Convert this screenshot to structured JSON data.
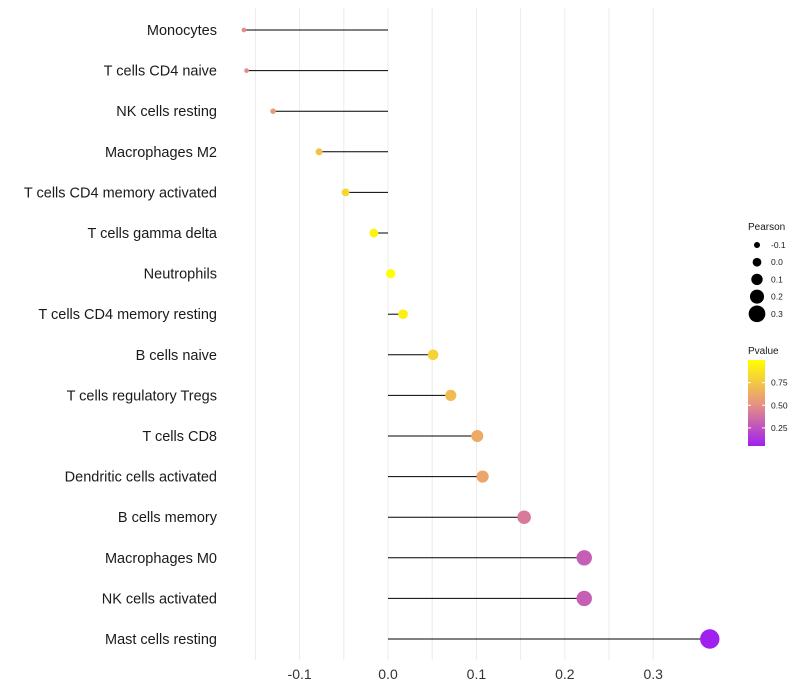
{
  "chart_data": {
    "type": "lollipop",
    "title": "",
    "xlabel": "",
    "ylabel": "",
    "xlim": [
      -0.17,
      0.37
    ],
    "x_ticks": [
      -0.1,
      0.0,
      0.1,
      0.2,
      0.3
    ],
    "x_tick_labels": [
      "-0.1",
      "0.0",
      "0.1",
      "0.2",
      "0.3"
    ],
    "grid": true,
    "categories": [
      "Monocytes",
      "T cells CD4 naive",
      "NK cells resting",
      "Macrophages M2",
      "T cells CD4 memory activated",
      "T cells gamma delta",
      "Neutrophils",
      "T cells CD4 memory resting",
      "B cells naive",
      "T cells regulatory  Tregs ",
      "T cells CD8",
      "Dendritic cells activated",
      "B cells memory",
      "Macrophages M0",
      "NK cells activated",
      "Mast cells resting"
    ],
    "pearson": [
      -0.163,
      -0.16,
      -0.13,
      -0.078,
      -0.048,
      -0.016,
      0.003,
      0.017,
      0.051,
      0.071,
      0.101,
      0.107,
      0.154,
      0.222,
      0.222,
      0.364
    ],
    "pvalue": [
      0.5,
      0.5,
      0.55,
      0.72,
      0.82,
      0.95,
      1.0,
      0.93,
      0.8,
      0.7,
      0.62,
      0.6,
      0.42,
      0.3,
      0.3,
      0.05
    ],
    "legend": {
      "size_title": "Pearson",
      "size_values": [
        -0.1,
        0.0,
        0.1,
        0.2,
        0.3
      ],
      "size_labels": [
        "-0.1",
        "0.0",
        "0.1",
        "0.2",
        "0.3"
      ],
      "color_title": "Pvalue",
      "color_ticks": [
        0.25,
        0.5,
        0.75
      ],
      "color_tick_labels": [
        "0.25",
        "0.50",
        "0.75"
      ],
      "color_range": [
        0.05,
        1.0
      ],
      "color_low": "#a020f0",
      "color_mid": "#e89580",
      "color_high": "#ffff00",
      "placement": "right"
    },
    "line_color": "#000000",
    "grid_color": "#ebebeb"
  }
}
